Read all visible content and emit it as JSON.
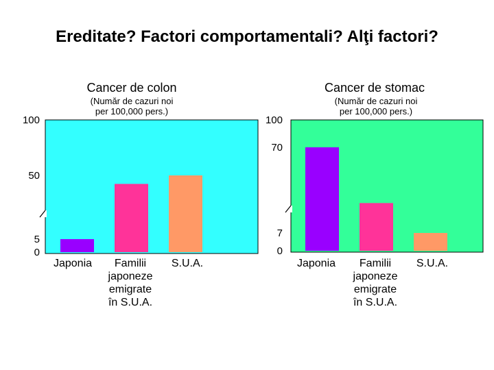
{
  "slide": {
    "title": "Ereditate? Factori comportamentali? Alţi factori?"
  },
  "chart_data": [
    {
      "type": "bar",
      "title": "Cancer de colon",
      "subtitle": [
        "(Număr de cazuri noi",
        "per 100,000 pers.)"
      ],
      "categories": [
        [
          "Japonia"
        ],
        [
          "Familii",
          "japoneze",
          "emigrate",
          "în S.U.A."
        ],
        [
          "S.U.A."
        ]
      ],
      "values": [
        5,
        44,
        50
      ],
      "y_ticks": [
        "0",
        "5",
        "50",
        "100"
      ],
      "axis_break": "between 5 and 50",
      "ylim": [
        0,
        100
      ],
      "background_color": "#33ffff",
      "bar_colors": [
        "#9900ff",
        "#ff3399",
        "#ff9966"
      ]
    },
    {
      "type": "bar",
      "title": "Cancer de stomac",
      "subtitle": [
        "(Număr de cazuri noi",
        "per 100,000 pers.)"
      ],
      "categories": [
        [
          "Japonia"
        ],
        [
          "Familii",
          "japoneze",
          "emigrate",
          "în S.U.A."
        ],
        [
          "S.U.A."
        ]
      ],
      "values": [
        70,
        29,
        7
      ],
      "y_ticks": [
        "0",
        "7",
        "70",
        "100"
      ],
      "axis_break": "between 7 and 70",
      "ylim": [
        0,
        100
      ],
      "background_color": "#33ff99",
      "bar_colors": [
        "#9900ff",
        "#ff3399",
        "#ff9966"
      ]
    }
  ]
}
